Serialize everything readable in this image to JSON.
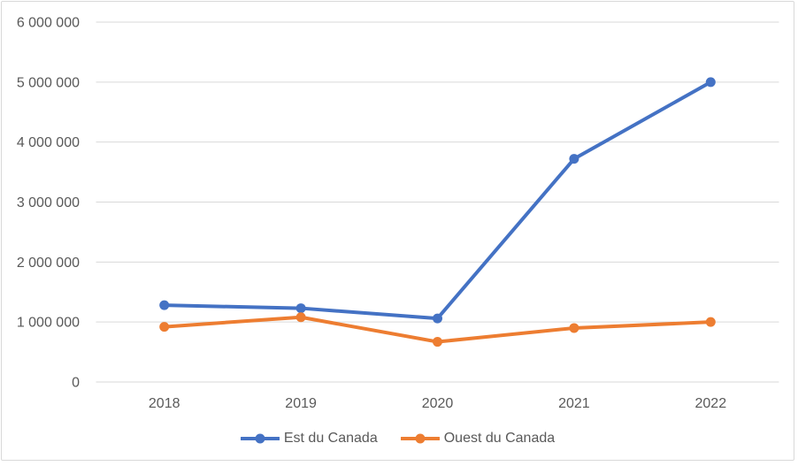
{
  "chart_data": {
    "type": "line",
    "categories": [
      "2018",
      "2019",
      "2020",
      "2021",
      "2022"
    ],
    "series": [
      {
        "name": "Est du Canada",
        "color": "#4472C4",
        "values": [
          1280000,
          1230000,
          1060000,
          3720000,
          5000000
        ]
      },
      {
        "name": "Ouest du Canada",
        "color": "#ED7D31",
        "values": [
          920000,
          1080000,
          670000,
          900000,
          1000000
        ]
      }
    ],
    "title": "",
    "xlabel": "",
    "ylabel": "",
    "ylim": [
      0,
      6000000
    ],
    "ytick_step": 1000000,
    "ytick_labels": [
      "0",
      "1 000 000",
      "2 000 000",
      "3 000 000",
      "4 000 000",
      "5 000 000",
      "6 000 000"
    ],
    "grid": true,
    "legend_position": "bottom",
    "marker": "circle"
  },
  "colors": {
    "gridline": "#D9D9D9",
    "axis_text": "#595959",
    "border": "#D9D9D9",
    "background": "#FFFFFF"
  }
}
